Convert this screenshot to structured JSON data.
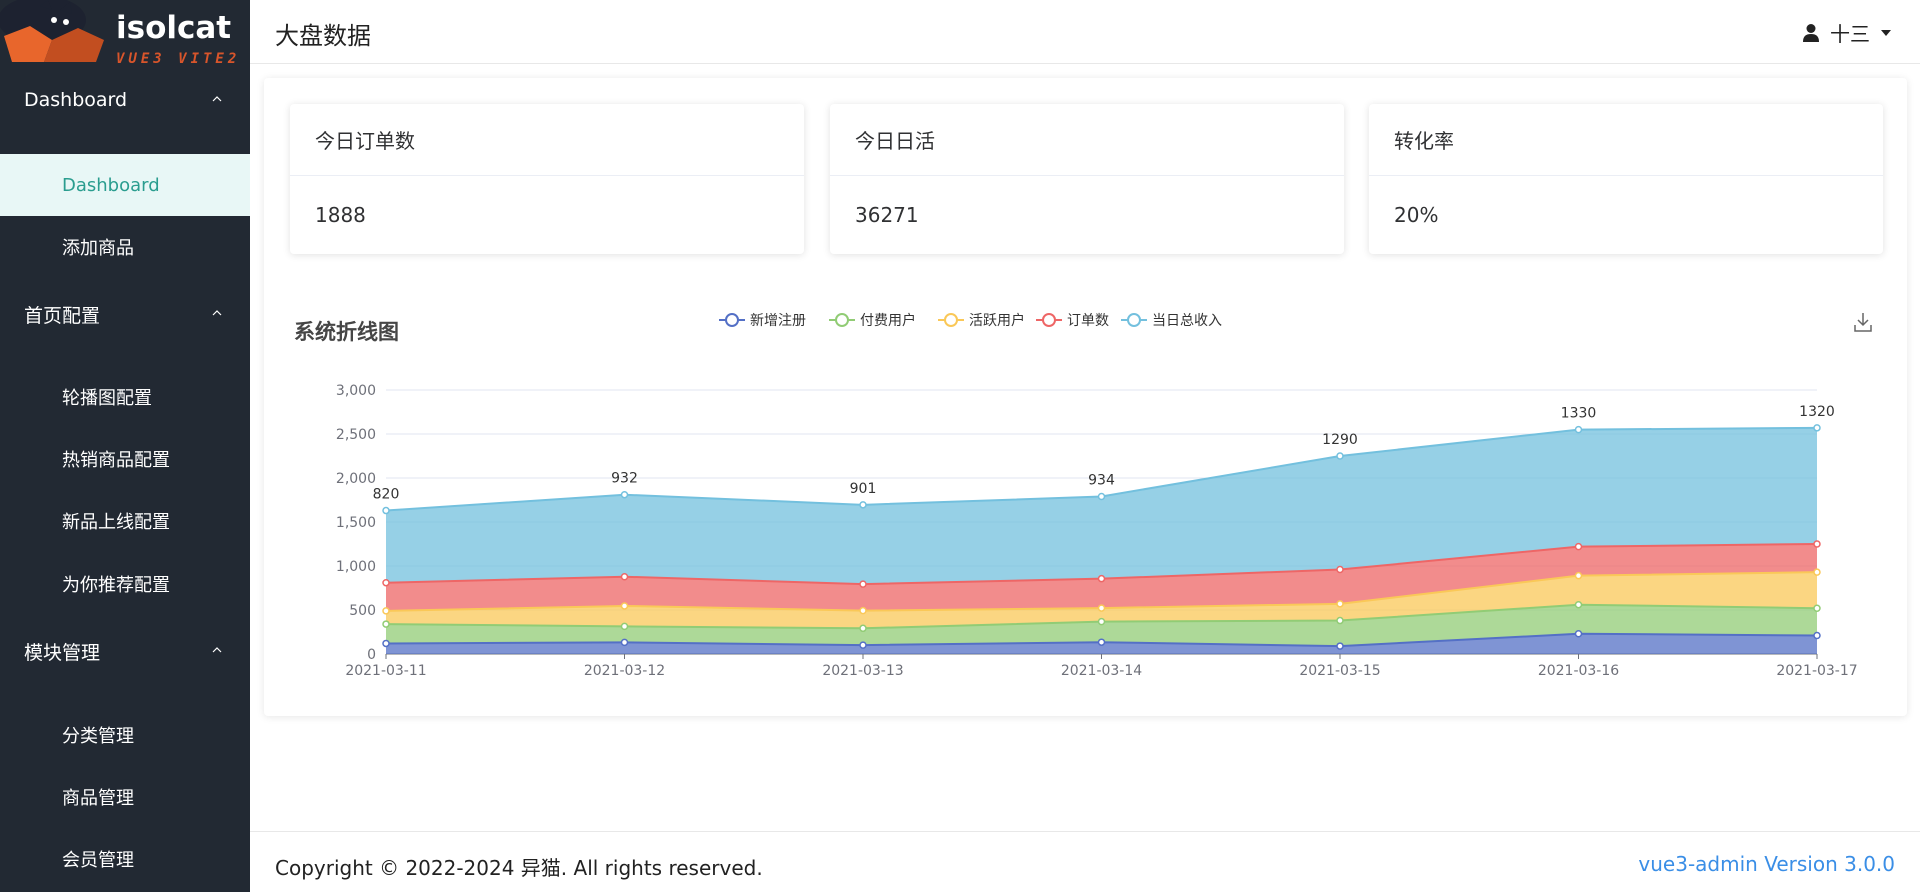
{
  "sidebar": {
    "logo": {
      "brand": "isolcat",
      "sub": "VUE3 VITE2"
    },
    "groups": [
      {
        "label": "Dashboard",
        "items": [
          {
            "label": "Dashboard",
            "active": true
          },
          {
            "label": "添加商品"
          }
        ]
      },
      {
        "label": "首页配置",
        "items": [
          {
            "label": "轮播图配置"
          },
          {
            "label": "热销商品配置"
          },
          {
            "label": "新品上线配置"
          },
          {
            "label": "为你推荐配置"
          }
        ]
      },
      {
        "label": "模块管理",
        "items": [
          {
            "label": "分类管理"
          },
          {
            "label": "商品管理"
          },
          {
            "label": "会员管理"
          }
        ]
      }
    ]
  },
  "header": {
    "title": "大盘数据",
    "user_name": "十三"
  },
  "cards": [
    {
      "label": "今日订单数",
      "value": "1888"
    },
    {
      "label": "今日日活",
      "value": "36271"
    },
    {
      "label": "转化率",
      "value": "20%"
    }
  ],
  "chart_data": {
    "type": "area",
    "stacked": true,
    "title": "系统折线图",
    "categories": [
      "2021-03-11",
      "2021-03-12",
      "2021-03-13",
      "2021-03-14",
      "2021-03-15",
      "2021-03-16",
      "2021-03-17"
    ],
    "ylim": [
      0,
      3000
    ],
    "yticks": [
      "0",
      "500",
      "1,000",
      "1,500",
      "2,000",
      "2,500",
      "3,000"
    ],
    "legend_position": "top",
    "grid": true,
    "series": [
      {
        "name": "新增注册",
        "color": "#5470c6",
        "values": [
          120,
          132,
          101,
          134,
          90,
          230,
          210
        ]
      },
      {
        "name": "付费用户",
        "color": "#91cc75",
        "values": [
          220,
          182,
          191,
          234,
          290,
          330,
          310
        ]
      },
      {
        "name": "活跃用户",
        "color": "#fac858",
        "values": [
          150,
          232,
          201,
          154,
          190,
          330,
          410
        ]
      },
      {
        "name": "订单数",
        "color": "#ee6666",
        "values": [
          320,
          332,
          301,
          334,
          390,
          330,
          320
        ]
      },
      {
        "name": "当日总收入",
        "color": "#73c0de",
        "values": [
          820,
          932,
          901,
          934,
          1290,
          1330,
          1320
        ],
        "labels": [
          "820",
          "932",
          "901",
          "934",
          "1290",
          "1330",
          "1320"
        ]
      }
    ]
  },
  "footer": {
    "copyright": "Copyright © 2022-2024 异猫. All rights reserved.",
    "version": "vue3-admin Version 3.0.0"
  }
}
